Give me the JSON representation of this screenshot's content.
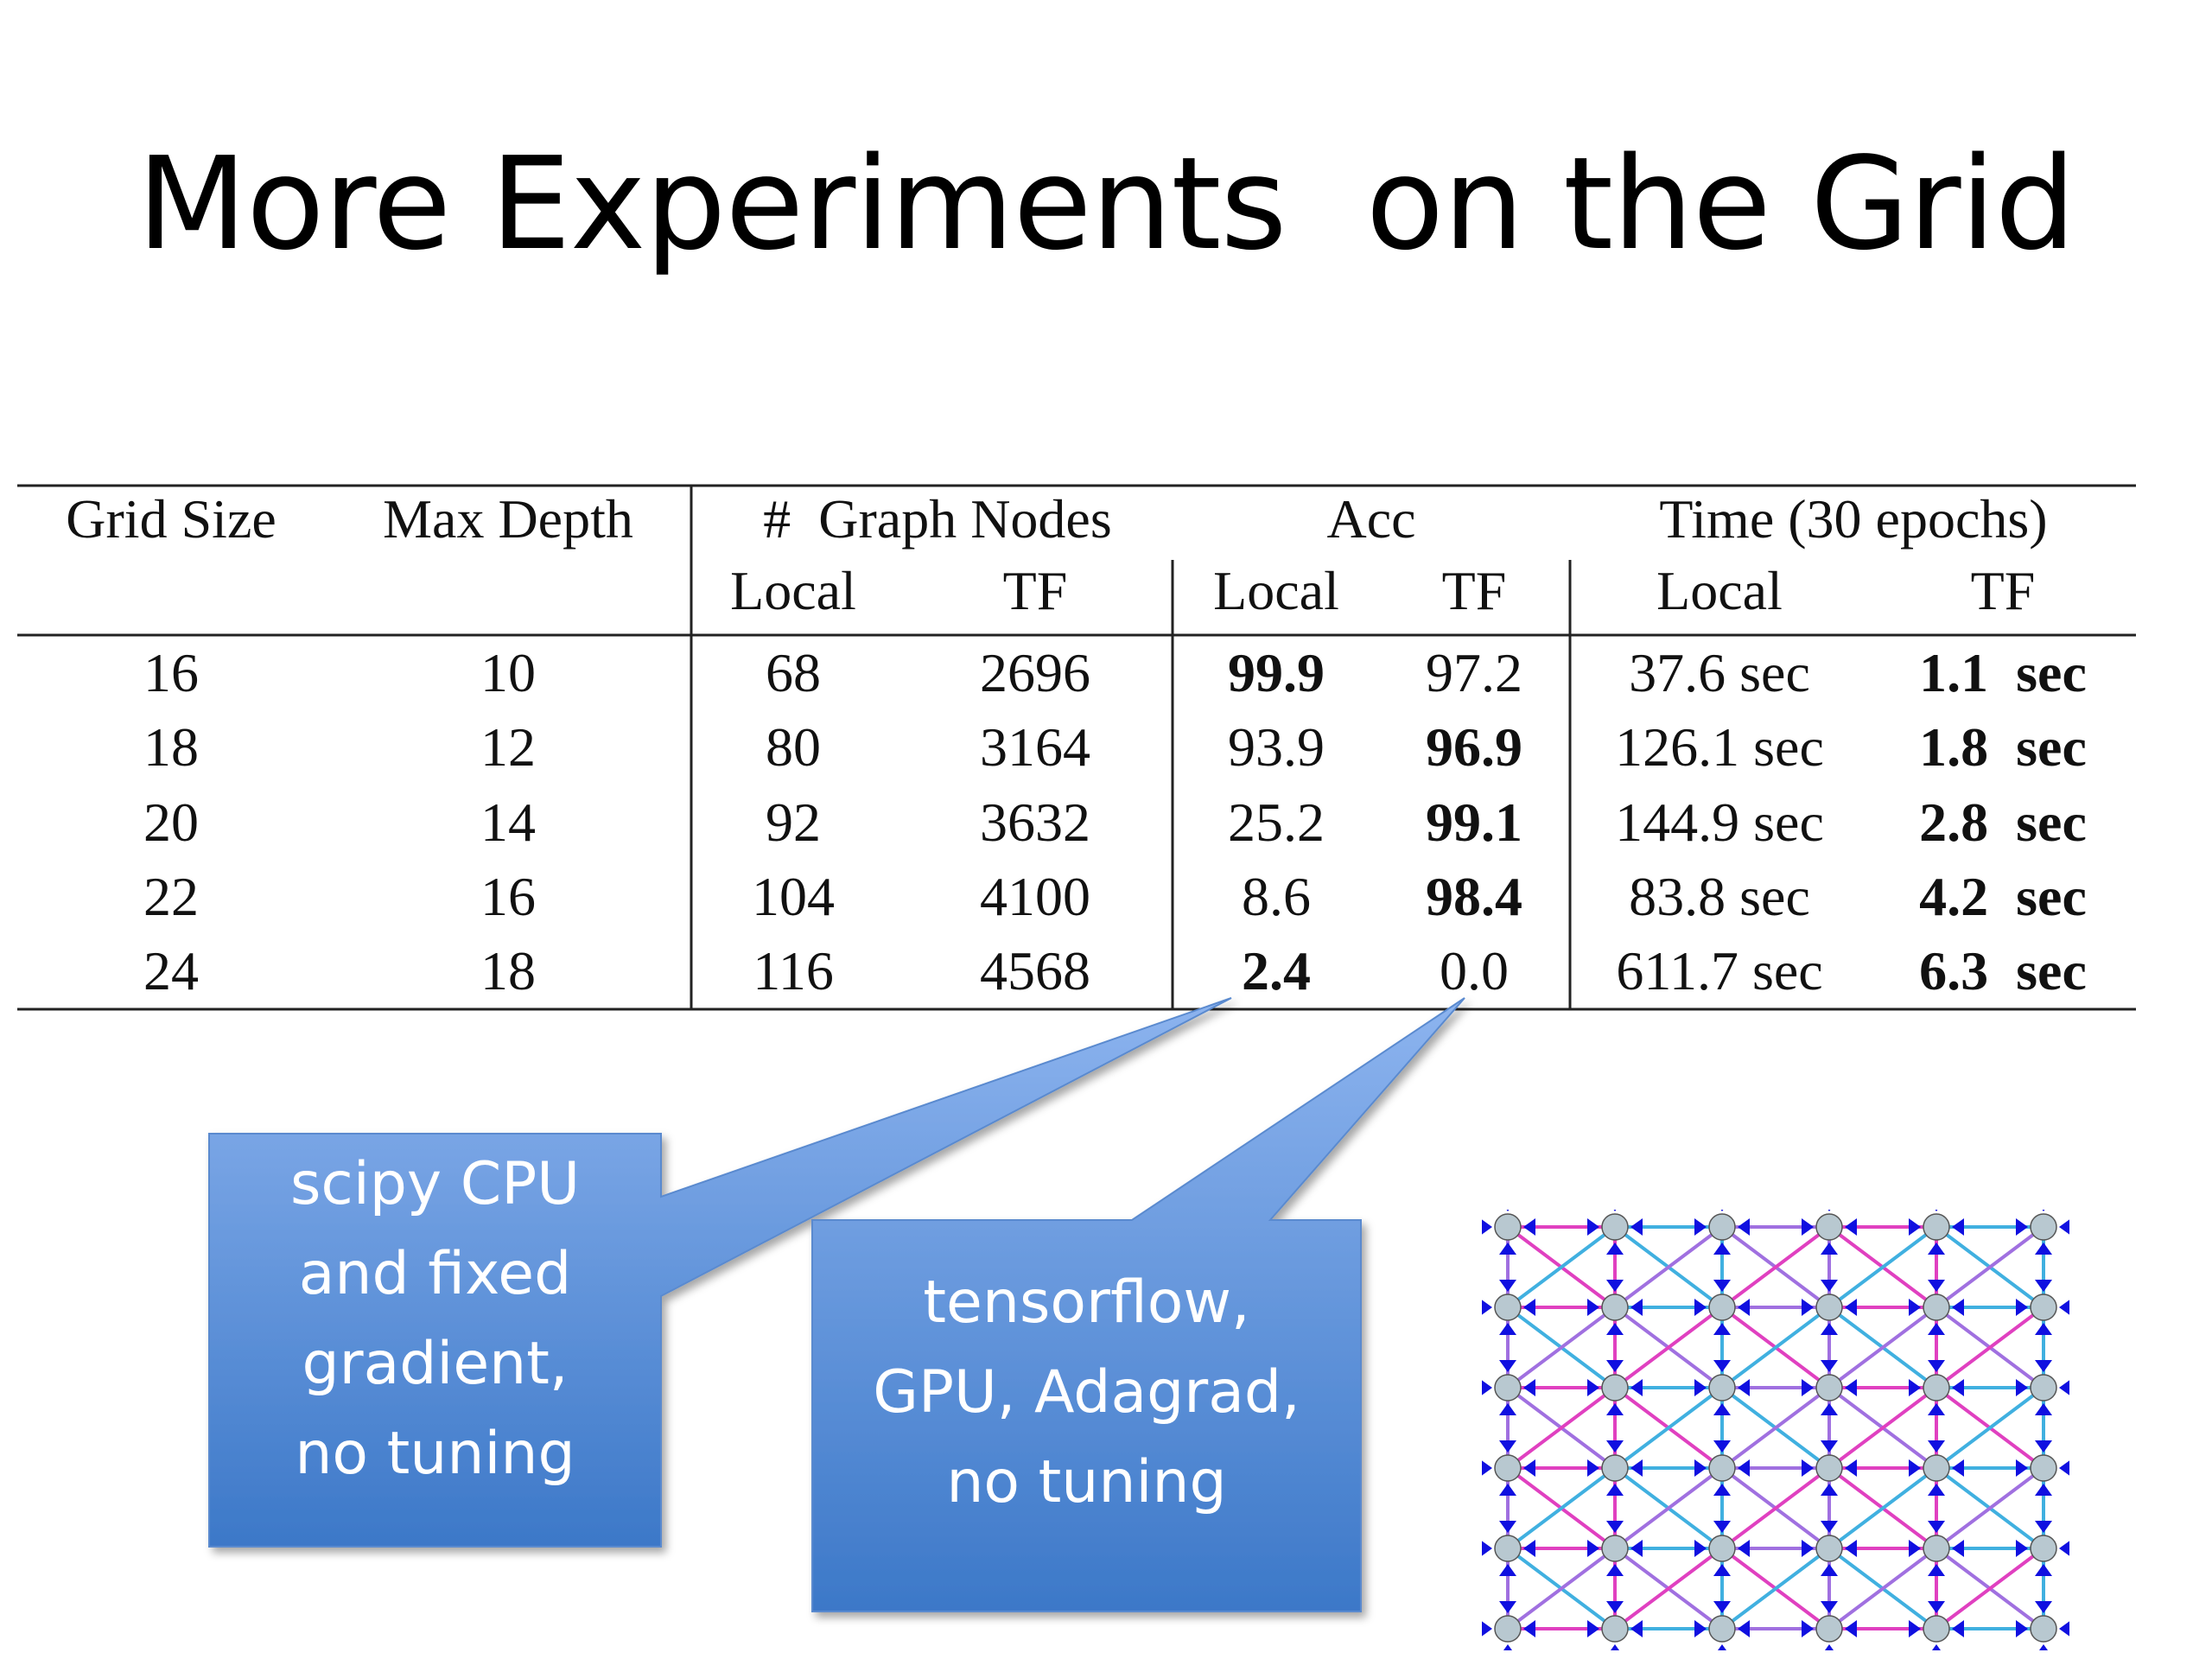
{
  "slide": {
    "title": "More Experiments  on the Grid"
  },
  "table": {
    "header_row1": [
      "Grid Size",
      "Max Depth",
      "#  Graph Nodes",
      "Acc",
      "Time (30 epochs)"
    ],
    "header_row2": [
      "Local",
      "TF",
      "Local",
      "TF",
      "Local",
      "TF"
    ],
    "rows": [
      [
        "16",
        "10",
        "68",
        "2696",
        "99.9",
        "97.2",
        "37.6 sec",
        "1.1  sec"
      ],
      [
        "18",
        "12",
        "80",
        "3164",
        "93.9",
        "96.9",
        "126.1 sec",
        "1.8  sec"
      ],
      [
        "20",
        "14",
        "92",
        "3632",
        "25.2",
        "99.1",
        "144.9 sec",
        "2.8  sec"
      ],
      [
        "22",
        "16",
        "104",
        "4100",
        "8.6",
        "98.4",
        "83.8 sec",
        "4.2  sec"
      ],
      [
        "24",
        "18",
        "116",
        "4568",
        "2.4",
        "0.0",
        "611.7 sec",
        "6.3  sec"
      ]
    ],
    "bold_cells": [
      [
        0,
        4
      ],
      [
        0,
        7
      ],
      [
        1,
        5
      ],
      [
        1,
        7
      ],
      [
        2,
        5
      ],
      [
        2,
        7
      ],
      [
        3,
        5
      ],
      [
        3,
        7
      ],
      [
        4,
        4
      ],
      [
        4,
        7
      ]
    ]
  },
  "callouts": {
    "left": {
      "lines": [
        "scipy CPU",
        "and fixed",
        "gradient,",
        "no tuning"
      ]
    },
    "right": {
      "lines": [
        "tensorflow,",
        "GPU, Adagrad,",
        "no tuning"
      ]
    },
    "fill_top": "#8db4ef",
    "fill_bottom": "#3c78c8"
  },
  "grid_figure": {
    "rows": 6,
    "cols": 6,
    "node_color": "#b8c8d0",
    "arrow_color": "#1010e0",
    "edge_colors": [
      "#e040c0",
      "#40b0e0",
      "#a070e0"
    ]
  }
}
